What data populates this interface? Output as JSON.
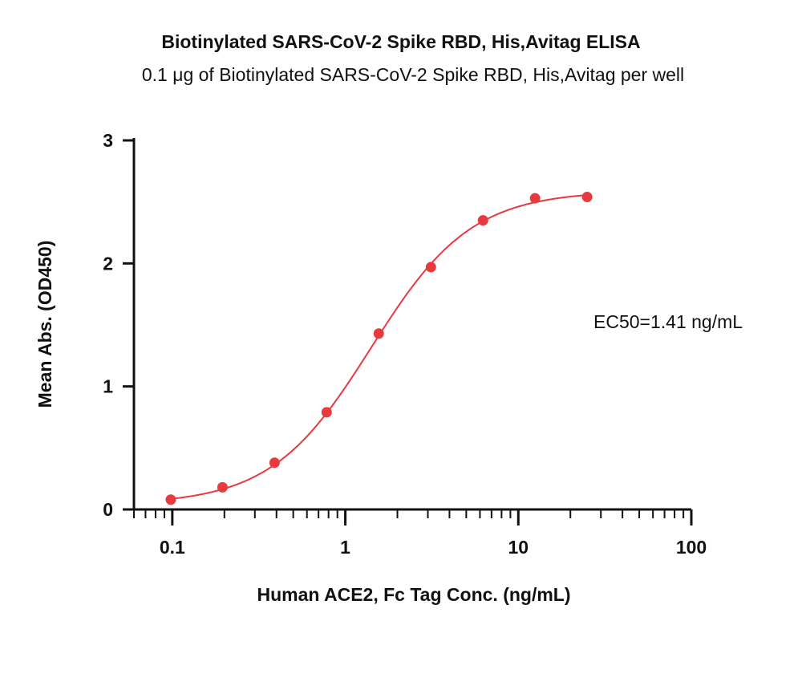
{
  "chart_data": {
    "type": "scatter",
    "title": "Biotinylated SARS-CoV-2 Spike RBD, His,Avitag ELISA",
    "subtitle": "0.1 μg of Biotinylated SARS-CoV-2 Spike RBD, His,Avitag per well",
    "xlabel": "Human ACE2, Fc Tag Conc. (ng/mL)",
    "ylabel": "Mean Abs. (OD450)",
    "x_scale": "log",
    "xlim": [
      0.06,
      100
    ],
    "ylim": [
      0,
      3
    ],
    "x_ticks": [
      0.1,
      1,
      10,
      100
    ],
    "x_tick_labels": [
      "0.1",
      "1",
      "10",
      "100"
    ],
    "y_ticks": [
      0,
      1,
      2,
      3
    ],
    "y_tick_labels": [
      "0",
      "1",
      "2",
      "3"
    ],
    "grid": false,
    "series": [
      {
        "color": "#e8393f",
        "x": [
          0.098,
          0.195,
          0.39,
          0.78,
          1.56,
          3.125,
          6.25,
          12.5,
          25
        ],
        "y": [
          0.08,
          0.18,
          0.38,
          0.79,
          1.43,
          1.97,
          2.35,
          2.53,
          2.54
        ]
      }
    ],
    "fit": {
      "model": "4PL",
      "bottom": 0.04,
      "top": 2.59,
      "ec50": 1.41,
      "hill": 1.5,
      "color": "#e8393f"
    },
    "annotation": "EC50=1.41 ng/mL"
  }
}
